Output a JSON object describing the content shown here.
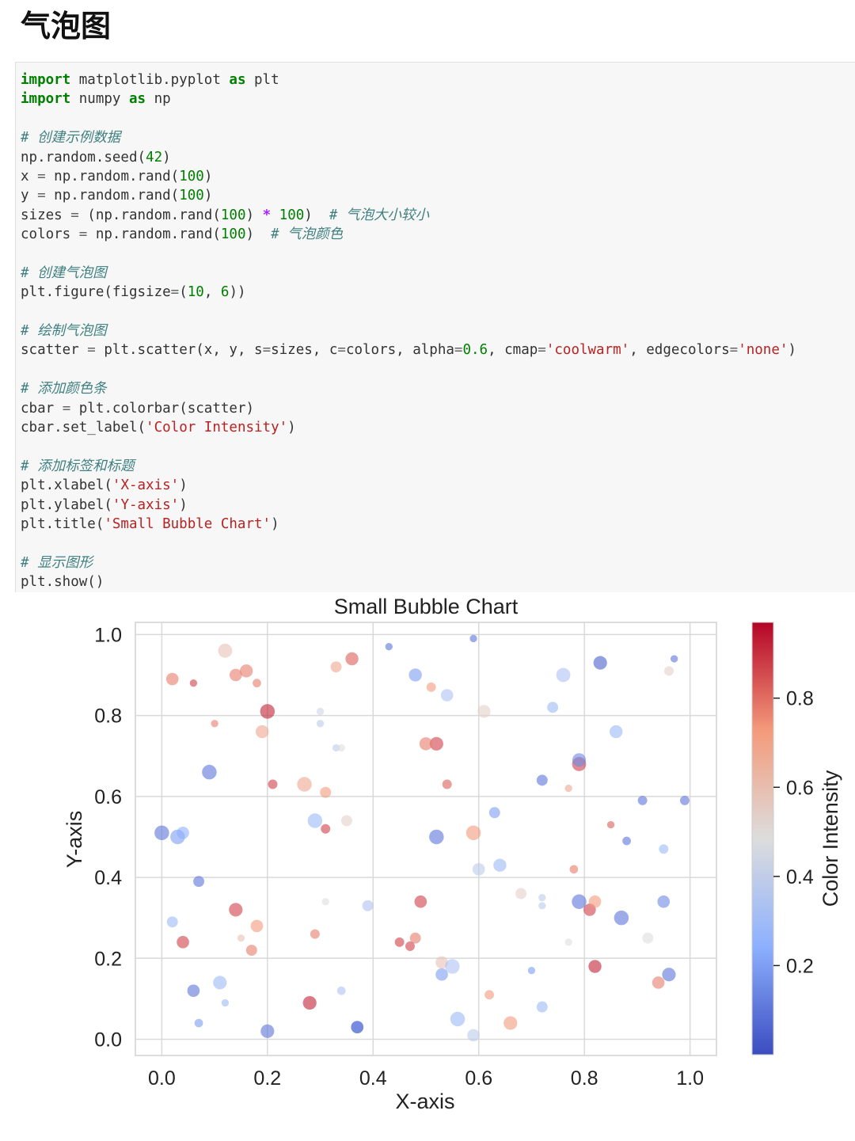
{
  "heading": "气泡图",
  "code_lines": [
    [
      {
        "t": "kw",
        "v": "import"
      },
      {
        "t": "p",
        "v": " matplotlib.pyplot "
      },
      {
        "t": "kw",
        "v": "as"
      },
      {
        "t": "p",
        "v": " plt"
      }
    ],
    [
      {
        "t": "kw",
        "v": "import"
      },
      {
        "t": "p",
        "v": " numpy "
      },
      {
        "t": "kw",
        "v": "as"
      },
      {
        "t": "p",
        "v": " np"
      }
    ],
    [],
    [
      {
        "t": "cm",
        "v": "# 创建示例数据"
      }
    ],
    [
      {
        "t": "p",
        "v": "np.random.seed("
      },
      {
        "t": "num",
        "v": "42"
      },
      {
        "t": "p",
        "v": ")"
      }
    ],
    [
      {
        "t": "p",
        "v": "x "
      },
      {
        "t": "eq",
        "v": "="
      },
      {
        "t": "p",
        "v": " np.random.rand("
      },
      {
        "t": "num",
        "v": "100"
      },
      {
        "t": "p",
        "v": ")"
      }
    ],
    [
      {
        "t": "p",
        "v": "y "
      },
      {
        "t": "eq",
        "v": "="
      },
      {
        "t": "p",
        "v": " np.random.rand("
      },
      {
        "t": "num",
        "v": "100"
      },
      {
        "t": "p",
        "v": ")"
      }
    ],
    [
      {
        "t": "p",
        "v": "sizes "
      },
      {
        "t": "eq",
        "v": "="
      },
      {
        "t": "p",
        "v": " (np.random.rand("
      },
      {
        "t": "num",
        "v": "100"
      },
      {
        "t": "p",
        "v": ") "
      },
      {
        "t": "op",
        "v": "*"
      },
      {
        "t": "p",
        "v": " "
      },
      {
        "t": "num",
        "v": "100"
      },
      {
        "t": "p",
        "v": ")  "
      },
      {
        "t": "cm",
        "v": "# 气泡大小较小"
      }
    ],
    [
      {
        "t": "p",
        "v": "colors "
      },
      {
        "t": "eq",
        "v": "="
      },
      {
        "t": "p",
        "v": " np.random.rand("
      },
      {
        "t": "num",
        "v": "100"
      },
      {
        "t": "p",
        "v": ")  "
      },
      {
        "t": "cm",
        "v": "# 气泡颜色"
      }
    ],
    [],
    [
      {
        "t": "cm",
        "v": "# 创建气泡图"
      }
    ],
    [
      {
        "t": "p",
        "v": "plt.figure(figsize"
      },
      {
        "t": "eq",
        "v": "="
      },
      {
        "t": "p",
        "v": "("
      },
      {
        "t": "num",
        "v": "10"
      },
      {
        "t": "p",
        "v": ", "
      },
      {
        "t": "num",
        "v": "6"
      },
      {
        "t": "p",
        "v": "))"
      }
    ],
    [],
    [
      {
        "t": "cm",
        "v": "# 绘制气泡图"
      }
    ],
    [
      {
        "t": "p",
        "v": "scatter "
      },
      {
        "t": "eq",
        "v": "="
      },
      {
        "t": "p",
        "v": " plt.scatter(x, y, s"
      },
      {
        "t": "eq",
        "v": "="
      },
      {
        "t": "p",
        "v": "sizes, c"
      },
      {
        "t": "eq",
        "v": "="
      },
      {
        "t": "p",
        "v": "colors, alpha"
      },
      {
        "t": "eq",
        "v": "="
      },
      {
        "t": "num",
        "v": "0.6"
      },
      {
        "t": "p",
        "v": ", cmap"
      },
      {
        "t": "eq",
        "v": "="
      },
      {
        "t": "str",
        "v": "'coolwarm'"
      },
      {
        "t": "p",
        "v": ", edgecolors"
      },
      {
        "t": "eq",
        "v": "="
      },
      {
        "t": "str",
        "v": "'none'"
      },
      {
        "t": "p",
        "v": ")"
      }
    ],
    [],
    [
      {
        "t": "cm",
        "v": "# 添加颜色条"
      }
    ],
    [
      {
        "t": "p",
        "v": "cbar "
      },
      {
        "t": "eq",
        "v": "="
      },
      {
        "t": "p",
        "v": " plt.colorbar(scatter)"
      }
    ],
    [
      {
        "t": "p",
        "v": "cbar.set_label("
      },
      {
        "t": "str",
        "v": "'Color Intensity'"
      },
      {
        "t": "p",
        "v": ")"
      }
    ],
    [],
    [
      {
        "t": "cm",
        "v": "# 添加标签和标题"
      }
    ],
    [
      {
        "t": "p",
        "v": "plt.xlabel("
      },
      {
        "t": "str",
        "v": "'X-axis'"
      },
      {
        "t": "p",
        "v": ")"
      }
    ],
    [
      {
        "t": "p",
        "v": "plt.ylabel("
      },
      {
        "t": "str",
        "v": "'Y-axis'"
      },
      {
        "t": "p",
        "v": ")"
      }
    ],
    [
      {
        "t": "p",
        "v": "plt.title("
      },
      {
        "t": "str",
        "v": "'Small Bubble Chart'"
      },
      {
        "t": "p",
        "v": ")"
      }
    ],
    [],
    [
      {
        "t": "cm",
        "v": "# 显示图形"
      }
    ],
    [
      {
        "t": "p",
        "v": "plt.show()"
      }
    ]
  ],
  "colors": {
    "code_bg": "#f7f7f7",
    "keyword": "#008000",
    "string": "#ba2121",
    "comment": "#408080",
    "operator": "#aa22ff",
    "cold": "#3b4cc0",
    "neutral": "#dddddd",
    "warm": "#b40426"
  },
  "chart_data": {
    "type": "scatter",
    "title": "Small Bubble Chart",
    "xlabel": "X-axis",
    "ylabel": "Y-axis",
    "colorbar_label": "Color Intensity",
    "colormap": "coolwarm",
    "alpha": 0.6,
    "xlim": [
      -0.05,
      1.05
    ],
    "ylim": [
      -0.04,
      1.03
    ],
    "xticks": [
      "0.0",
      "0.2",
      "0.4",
      "0.6",
      "0.8",
      "1.0"
    ],
    "yticks": [
      "0.0",
      "0.2",
      "0.4",
      "0.6",
      "0.8",
      "1.0"
    ],
    "colorbar_ticks": [
      "0.2",
      "0.4",
      "0.6",
      "0.8"
    ],
    "colorbar_range": [
      0.0,
      0.97
    ],
    "grid": true,
    "x": [
      0.12,
      0.02,
      0.06,
      0.14,
      0.16,
      0.18,
      0.2,
      0.3,
      0.33,
      0.36,
      0.43,
      0.48,
      0.51,
      0.54,
      0.59,
      0.61,
      0.74,
      0.76,
      0.83,
      0.97,
      0.96,
      0.09,
      0.19,
      0.21,
      0.1,
      0.27,
      0.31,
      0.33,
      0.52,
      0.5,
      0.54,
      0.63,
      0.72,
      0.79,
      0.79,
      0.86,
      0.91,
      0.0,
      0.03,
      0.04,
      0.29,
      0.31,
      0.35,
      0.52,
      0.59,
      0.64,
      0.78,
      0.85,
      0.88,
      0.99,
      0.07,
      0.02,
      0.04,
      0.14,
      0.18,
      0.17,
      0.29,
      0.39,
      0.49,
      0.48,
      0.47,
      0.45,
      0.53,
      0.6,
      0.68,
      0.72,
      0.77,
      0.81,
      0.79,
      0.82,
      0.87,
      0.92,
      0.95,
      0.06,
      0.11,
      0.12,
      0.28,
      0.37,
      0.34,
      0.53,
      0.56,
      0.62,
      0.66,
      0.72,
      0.82,
      0.96,
      0.94,
      0.07,
      0.2,
      0.37,
      0.55,
      0.59,
      0.7,
      0.31,
      0.34,
      0.3,
      0.15,
      0.72,
      0.77,
      0.95
    ],
    "y": [
      0.96,
      0.89,
      0.88,
      0.9,
      0.91,
      0.88,
      0.81,
      0.81,
      0.92,
      0.94,
      0.97,
      0.9,
      0.87,
      0.85,
      0.99,
      0.81,
      0.82,
      0.9,
      0.93,
      0.94,
      0.91,
      0.66,
      0.76,
      0.63,
      0.78,
      0.63,
      0.61,
      0.72,
      0.73,
      0.73,
      0.63,
      0.56,
      0.64,
      0.68,
      0.69,
      0.76,
      0.59,
      0.51,
      0.5,
      0.51,
      0.54,
      0.52,
      0.54,
      0.5,
      0.51,
      0.43,
      0.42,
      0.53,
      0.49,
      0.59,
      0.39,
      0.29,
      0.24,
      0.32,
      0.28,
      0.22,
      0.26,
      0.33,
      0.34,
      0.25,
      0.23,
      0.24,
      0.19,
      0.42,
      0.36,
      0.33,
      0.24,
      0.32,
      0.34,
      0.34,
      0.3,
      0.25,
      0.34,
      0.12,
      0.14,
      0.09,
      0.09,
      0.03,
      0.12,
      0.16,
      0.05,
      0.11,
      0.04,
      0.08,
      0.18,
      0.16,
      0.14,
      0.04,
      0.02,
      0.03,
      0.18,
      0.01,
      0.17,
      0.34,
      0.72,
      0.78,
      0.25,
      0.35,
      0.62,
      0.47
    ],
    "sizes": [
      55,
      40,
      10,
      40,
      45,
      15,
      60,
      10,
      30,
      45,
      10,
      45,
      20,
      40,
      10,
      45,
      30,
      55,
      50,
      10,
      20,
      60,
      45,
      20,
      10,
      60,
      30,
      10,
      50,
      45,
      20,
      30,
      30,
      55,
      50,
      45,
      20,
      60,
      60,
      40,
      60,
      20,
      30,
      60,
      60,
      45,
      15,
      10,
      15,
      20,
      30,
      30,
      40,
      50,
      40,
      30,
      20,
      30,
      40,
      30,
      20,
      20,
      40,
      40,
      30,
      10,
      10,
      40,
      60,
      40,
      60,
      30,
      40,
      40,
      50,
      10,
      50,
      40,
      15,
      40,
      60,
      20,
      50,
      30,
      45,
      50,
      40,
      15,
      50,
      40,
      60,
      40,
      10,
      10,
      10,
      10,
      10,
      10,
      10,
      20
    ],
    "colors": [
      0.6,
      0.8,
      0.9,
      0.8,
      0.8,
      0.8,
      0.95,
      0.45,
      0.7,
      0.85,
      0.1,
      0.2,
      0.75,
      0.35,
      0.1,
      0.55,
      0.3,
      0.35,
      0.05,
      0.1,
      0.55,
      0.1,
      0.7,
      0.9,
      0.8,
      0.7,
      0.75,
      0.4,
      0.9,
      0.8,
      0.85,
      0.2,
      0.1,
      0.9,
      0.15,
      0.3,
      0.1,
      0.1,
      0.2,
      0.25,
      0.3,
      0.9,
      0.55,
      0.1,
      0.75,
      0.3,
      0.8,
      0.85,
      0.1,
      0.1,
      0.1,
      0.3,
      0.9,
      0.9,
      0.75,
      0.8,
      0.8,
      0.35,
      0.9,
      0.8,
      0.9,
      0.9,
      0.6,
      0.4,
      0.55,
      0.4,
      0.5,
      0.9,
      0.1,
      0.75,
      0.1,
      0.5,
      0.15,
      0.1,
      0.3,
      0.3,
      0.95,
      0.1,
      0.35,
      0.2,
      0.3,
      0.75,
      0.75,
      0.3,
      0.95,
      0.1,
      0.8,
      0.2,
      0.1,
      0.1,
      0.35,
      0.4,
      0.2,
      0.5,
      0.5,
      0.4,
      0.6,
      0.4,
      0.7,
      0.3
    ]
  }
}
